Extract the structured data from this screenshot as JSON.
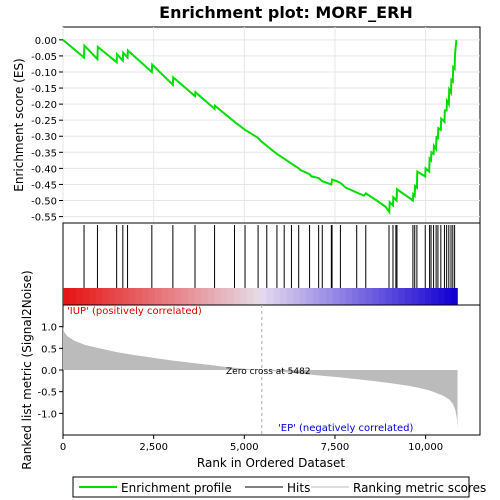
{
  "chart_data": {
    "type": "line",
    "title": "Enrichment plot: MORF_ERH",
    "es_panel": {
      "ylabel": "Enrichment score (ES)",
      "ylim": [
        -0.55,
        0.0
      ],
      "yticks": [
        0.0,
        -0.05,
        -0.1,
        -0.15,
        -0.2,
        -0.25,
        -0.3,
        -0.35,
        -0.4,
        -0.45,
        -0.5,
        -0.55
      ],
      "ytick_labels": [
        "0.00",
        "-0.05",
        "-0.10",
        "-0.15",
        "-0.20",
        "-0.25",
        "-0.30",
        "-0.35",
        "-0.40",
        "-0.45",
        "-0.50",
        "-0.55"
      ],
      "color": "#00dd00",
      "x": [
        0,
        580,
        590,
        950,
        960,
        1480,
        1490,
        1650,
        1660,
        1780,
        1790,
        2450,
        2460,
        3030,
        3040,
        3640,
        3650,
        4180,
        4190,
        4730,
        5020,
        5380,
        5460,
        5620,
        5900,
        6100,
        6300,
        6500,
        6550,
        6800,
        6850,
        7050,
        7150,
        7400,
        7420,
        7550,
        7650,
        7800,
        8100,
        8300,
        8350,
        8650,
        8900,
        9000,
        9010,
        9100,
        9110,
        9200,
        9210,
        9650,
        9660,
        9700,
        9710,
        9760,
        9770,
        9990,
        10000,
        10100,
        10110,
        10150,
        10160,
        10220,
        10230,
        10290,
        10300,
        10340,
        10350,
        10420,
        10430,
        10520,
        10530,
        10580,
        10590,
        10640,
        10650,
        10700,
        10710,
        10750,
        10760,
        10800,
        10810,
        10850
      ],
      "y": [
        0.0,
        -0.055,
        -0.018,
        -0.06,
        -0.022,
        -0.07,
        -0.045,
        -0.065,
        -0.04,
        -0.055,
        -0.033,
        -0.1,
        -0.077,
        -0.14,
        -0.117,
        -0.175,
        -0.163,
        -0.215,
        -0.205,
        -0.255,
        -0.28,
        -0.305,
        -0.315,
        -0.33,
        -0.355,
        -0.37,
        -0.385,
        -0.4,
        -0.405,
        -0.418,
        -0.425,
        -0.43,
        -0.44,
        -0.45,
        -0.435,
        -0.44,
        -0.445,
        -0.46,
        -0.475,
        -0.485,
        -0.478,
        -0.5,
        -0.52,
        -0.535,
        -0.505,
        -0.515,
        -0.49,
        -0.5,
        -0.465,
        -0.5,
        -0.48,
        -0.485,
        -0.455,
        -0.46,
        -0.41,
        -0.425,
        -0.4,
        -0.41,
        -0.37,
        -0.375,
        -0.35,
        -0.355,
        -0.33,
        -0.34,
        -0.3,
        -0.31,
        -0.275,
        -0.28,
        -0.245,
        -0.255,
        -0.22,
        -0.22,
        -0.19,
        -0.2,
        -0.155,
        -0.165,
        -0.125,
        -0.13,
        -0.085,
        -0.09,
        -0.045,
        0.0
      ]
    },
    "hits": [
      580,
      950,
      1480,
      1650,
      1780,
      2450,
      3030,
      3640,
      4180,
      4730,
      5020,
      5380,
      5620,
      5900,
      6100,
      6300,
      6500,
      6800,
      7050,
      7150,
      7400,
      7420,
      7650,
      8100,
      8350,
      8990,
      9100,
      9180,
      9210,
      9650,
      9700,
      9760,
      9990,
      10110,
      10150,
      10220,
      10290,
      10340,
      10420,
      10520,
      10580,
      10640,
      10700,
      10750,
      10800
    ],
    "ranking_panel": {
      "xlabel": "Rank in Ordered Dataset",
      "ylabel": "Ranked list metric (Signal2Noise)",
      "ylim": [
        -1.5,
        1.5
      ],
      "yticks": [
        1.0,
        0.5,
        0.0,
        -0.5,
        -1.0
      ],
      "ytick_labels": [
        "1.0",
        "0.5",
        "0.0",
        "-0.5",
        "-1.0"
      ],
      "xticks": [
        0,
        2500,
        5000,
        7500,
        10000
      ],
      "xtick_labels": [
        "0",
        "2,500",
        "5,000",
        "7,500",
        "10,000"
      ],
      "xlim": [
        0,
        11500
      ],
      "n_genes": 10880,
      "zero_cross": 5482,
      "zero_cross_label": "Zero cross at 5482",
      "positive_label": "'IUP' (positively correlated)",
      "negative_label": "'EP' (negatively correlated)",
      "metric_x": [
        0,
        30,
        120,
        300,
        600,
        1000,
        1500,
        2000,
        2500,
        3000,
        3500,
        4000,
        4500,
        5000,
        5482,
        6000,
        6500,
        7000,
        7500,
        8000,
        8500,
        9000,
        9500,
        9800,
        10100,
        10300,
        10500,
        10650,
        10750,
        10820,
        10860,
        10880
      ],
      "metric_y": [
        1.0,
        0.88,
        0.78,
        0.68,
        0.58,
        0.5,
        0.41,
        0.34,
        0.28,
        0.22,
        0.17,
        0.12,
        0.07,
        0.03,
        0.0,
        -0.04,
        -0.08,
        -0.12,
        -0.16,
        -0.2,
        -0.25,
        -0.3,
        -0.36,
        -0.41,
        -0.47,
        -0.53,
        -0.6,
        -0.68,
        -0.78,
        -0.92,
        -1.1,
        -1.35
      ]
    },
    "legend": {
      "items": [
        {
          "label": "Enrichment profile",
          "color": "#00dd00"
        },
        {
          "label": "Hits",
          "color": "#000000"
        },
        {
          "label": "Ranking metric scores",
          "color": "#bbbbbb"
        }
      ]
    }
  }
}
